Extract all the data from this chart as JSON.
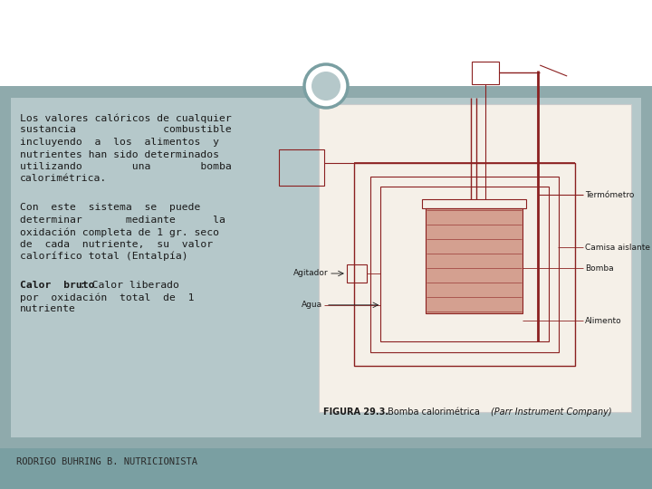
{
  "bg_top_color": "#ffffff",
  "slide_bg": "#8faaac",
  "content_bg": "#b5c8ca",
  "footer_bg": "#7a9fa2",
  "footer_text_darker": "#2a2a2a",
  "circle_outer_color": "#8faaac",
  "circle_inner_color": "#b5c8ca",
  "text_color": "#1a1a1a",
  "diagram_color": "#8b2020",
  "diagram_label_color": "#333333",
  "figure_caption_bold": "FIGURA 29.3.",
  "figure_caption_rest": " Bomba calorimétrica ",
  "figure_caption_italic": "(Parr Instrument Company)",
  "footer_text": "RODRIGO BUHRING B. NUTRICIONISTA",
  "p1_lines": [
    "Los valores calóricos de cualquier",
    "sustancia              combustible",
    "incluyendo  a  los  alimentos  y",
    "nutrientes han sido determinados",
    "utilizando        una        bomba",
    "calorimétrica."
  ],
  "p2_lines": [
    "Con  este  sistema  se  puede",
    "determinar       mediante      la",
    "oxidación completa de 1 gr. seco",
    "de  cada  nutriente,  su  valor",
    "calorífico total (Entalpía)"
  ],
  "p3_bold": "Calor  bruto",
  "p3_rest_lines": [
    " : Calor liberado",
    "por  oxidación  total  de  1",
    "nutriente"
  ],
  "diag_labels": [
    "Termómetro",
    "Camisa aislante",
    "Bomba",
    "Agitador",
    "Agua",
    "Alimento"
  ]
}
